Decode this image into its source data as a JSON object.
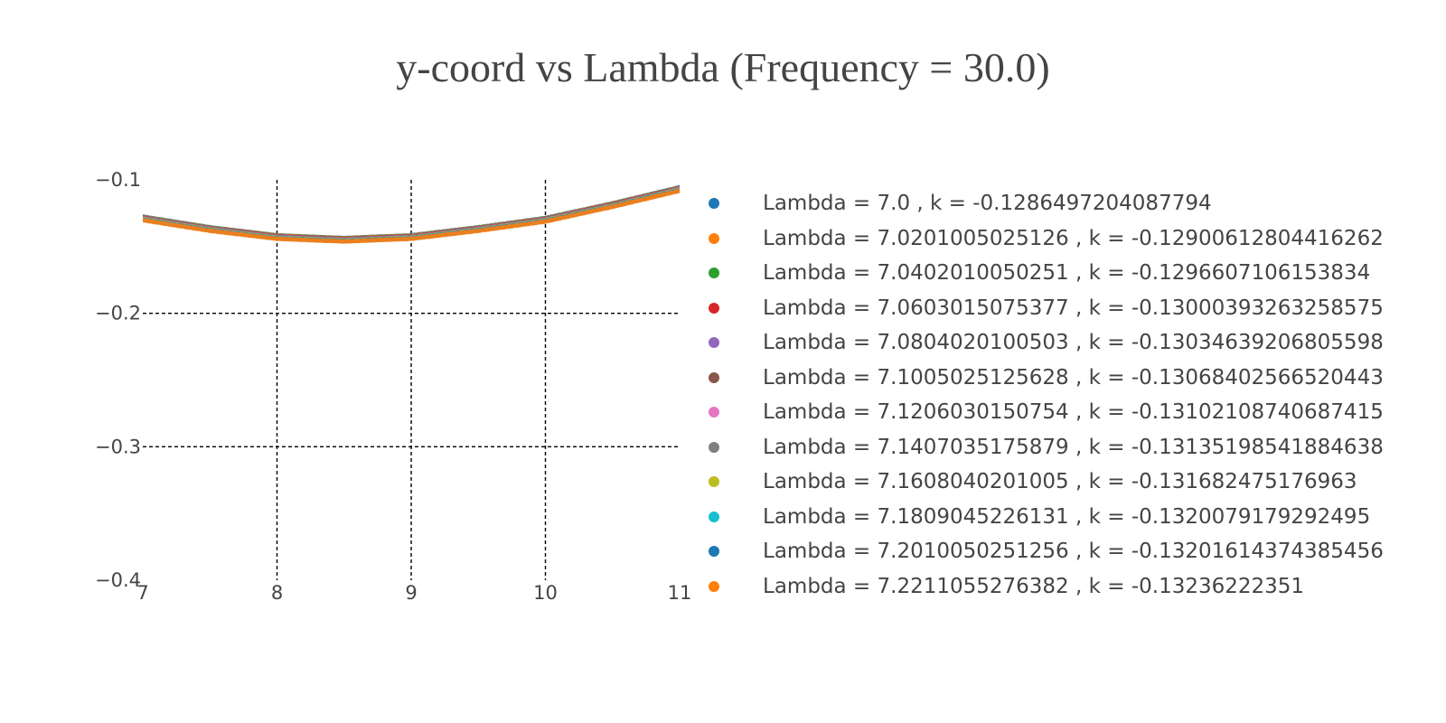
{
  "chart_data": {
    "type": "line",
    "title": "y-coord vs Lambda (Frequency = 30.0)",
    "xlabel": "",
    "ylabel": "",
    "xlim": [
      7,
      11
    ],
    "ylim": [
      -0.4,
      -0.1
    ],
    "xticks": [
      "7",
      "8",
      "9",
      "10",
      "11"
    ],
    "yticks": [
      "−0.1",
      "−0.2",
      "−0.3",
      "−0.4"
    ],
    "grid": "dashed",
    "legend_position": "right",
    "x": [
      7.0,
      7.5,
      8.0,
      8.5,
      9.0,
      9.5,
      10.0,
      10.5,
      11.0
    ],
    "y": [
      -0.129,
      -0.137,
      -0.143,
      -0.145,
      -0.143,
      -0.137,
      -0.13,
      -0.119,
      -0.107
    ],
    "series": [
      {
        "name": "Lambda = 7.0 , k = -0.1286497204087794",
        "color": "#1f77b4"
      },
      {
        "name": "Lambda = 7.0201005025126 , k = -0.12900612804416262",
        "color": "#ff7f0e"
      },
      {
        "name": "Lambda = 7.0402010050251 , k = -0.1296607106153834",
        "color": "#2ca02c"
      },
      {
        "name": "Lambda = 7.0603015075377 , k = -0.13000393263258575",
        "color": "#d62728"
      },
      {
        "name": "Lambda = 7.0804020100503 , k = -0.13034639206805598",
        "color": "#9467bd"
      },
      {
        "name": "Lambda = 7.1005025125628 , k = -0.13068402566520443",
        "color": "#8c564b"
      },
      {
        "name": "Lambda = 7.1206030150754 , k = -0.13102108740687415",
        "color": "#e377c2"
      },
      {
        "name": "Lambda = 7.1407035175879 , k = -0.13135198541884638",
        "color": "#7f7f7f"
      },
      {
        "name": "Lambda = 7.1608040201005 , k = -0.131682475176963",
        "color": "#bcbd22"
      },
      {
        "name": "Lambda = 7.1809045226131 , k = -0.1320079179292495",
        "color": "#17becf"
      },
      {
        "name": "Lambda = 7.2010050251256 , k = -0.13201614374385456",
        "color": "#1f77b4"
      },
      {
        "name": "Lambda = 7.2211055276382 , k = -0.13236222351",
        "color": "#ff7f0e"
      }
    ]
  }
}
